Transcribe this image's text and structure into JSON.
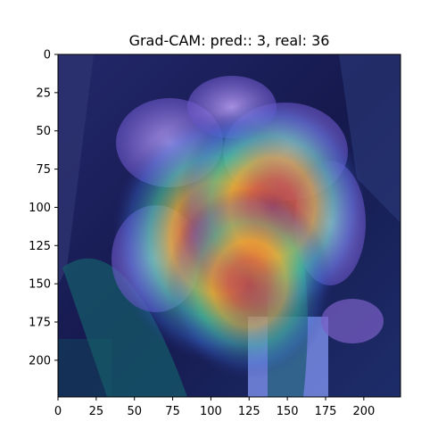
{
  "chart_data": {
    "type": "heatmap",
    "title": "Grad-CAM: pred:: 3, real: 36",
    "xlabel": "",
    "ylabel": "",
    "xlim": [
      0,
      224
    ],
    "ylim": [
      224,
      0
    ],
    "xticks": [
      0,
      25,
      50,
      75,
      100,
      125,
      150,
      175,
      200
    ],
    "yticks": [
      0,
      25,
      50,
      75,
      100,
      125,
      150,
      175,
      200
    ],
    "grid": false,
    "colormap": "jet",
    "hotspots": [
      {
        "x": 105,
        "y": 120,
        "intensity": 1.0
      },
      {
        "x": 140,
        "y": 100,
        "intensity": 0.85
      },
      {
        "x": 125,
        "y": 150,
        "intensity": 0.7
      }
    ],
    "colors": {
      "background_dark": "#1a1f5c",
      "flower_purple": "#8a6fd6",
      "hot": "#d83a3a",
      "warm": "#e8a83a",
      "mid": "#3cc6a8"
    }
  }
}
